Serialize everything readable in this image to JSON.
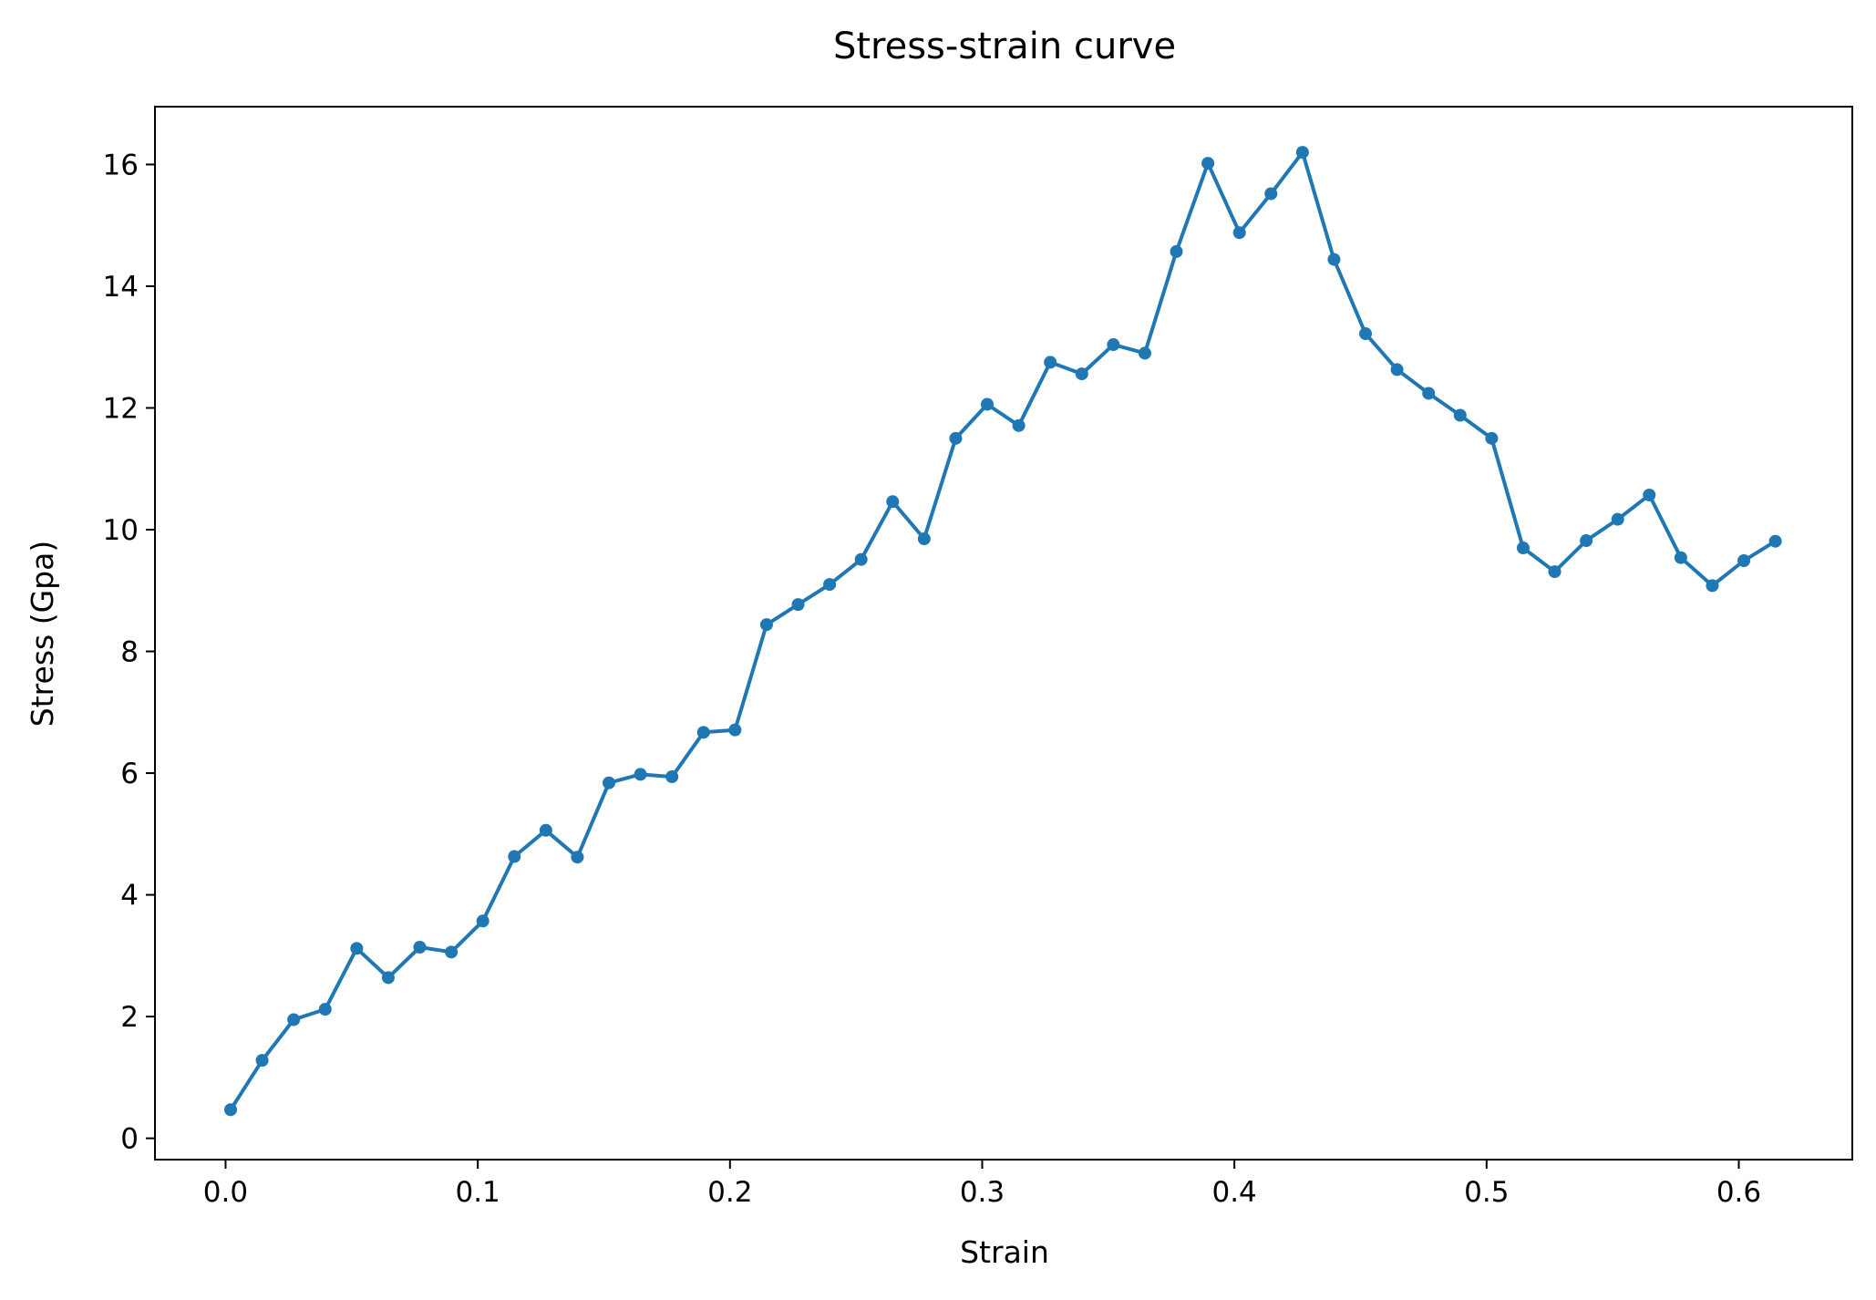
{
  "chart_data": {
    "type": "line",
    "title": "Stress-strain curve",
    "xlabel": "Strain",
    "ylabel": "Stress (Gpa)",
    "xlim": [
      -0.028,
      0.645
    ],
    "ylim": [
      -0.35,
      16.95
    ],
    "xticks": [
      0.0,
      0.1,
      0.2,
      0.3,
      0.4,
      0.5,
      0.6
    ],
    "xtick_labels": [
      "0.0",
      "0.1",
      "0.2",
      "0.3",
      "0.4",
      "0.5",
      "0.6"
    ],
    "yticks": [
      0,
      2,
      4,
      6,
      8,
      10,
      12,
      14,
      16
    ],
    "ytick_labels": [
      "0",
      "2",
      "4",
      "6",
      "8",
      "10",
      "12",
      "14",
      "16"
    ],
    "grid": false,
    "legend": "none",
    "marker": "circle",
    "color": "#1f77b4",
    "series": [
      {
        "x": [
          0.002,
          0.0145,
          0.027,
          0.0395,
          0.052,
          0.0645,
          0.077,
          0.0895,
          0.102,
          0.1145,
          0.127,
          0.1395,
          0.152,
          0.1645,
          0.177,
          0.1895,
          0.202,
          0.2145,
          0.227,
          0.2395,
          0.252,
          0.2645,
          0.277,
          0.2895,
          0.302,
          0.3145,
          0.327,
          0.3395,
          0.352,
          0.3645,
          0.377,
          0.3895,
          0.402,
          0.4145,
          0.427,
          0.4395,
          0.452,
          0.4645,
          0.477,
          0.4895,
          0.502,
          0.5145,
          0.527,
          0.5395,
          0.552,
          0.5645,
          0.577,
          0.5895,
          0.602,
          0.6145
        ],
        "y": [
          0.47,
          1.28,
          1.95,
          2.12,
          3.12,
          2.64,
          3.14,
          3.06,
          3.57,
          4.63,
          5.06,
          4.62,
          5.84,
          5.98,
          5.94,
          6.67,
          6.71,
          8.44,
          8.77,
          9.1,
          9.51,
          10.46,
          9.85,
          11.5,
          12.06,
          11.71,
          12.75,
          12.56,
          13.04,
          12.9,
          14.57,
          16.02,
          14.88,
          15.52,
          16.2,
          14.44,
          13.22,
          12.63,
          12.24,
          11.88,
          11.5,
          9.7,
          9.31,
          9.82,
          10.17,
          10.57,
          9.54,
          9.08,
          9.49,
          9.81
        ]
      }
    ]
  }
}
